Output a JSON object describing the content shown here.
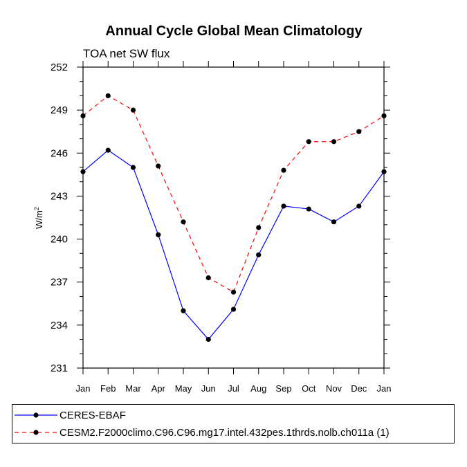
{
  "chart_data": {
    "type": "line",
    "title": "Annual Cycle Global Mean Climatology",
    "subtitle": "TOA net SW flux",
    "ylabel_base": "W/m",
    "ylabel_sup": "2",
    "xlabel": "",
    "categories": [
      "Jan",
      "Feb",
      "Mar",
      "Apr",
      "May",
      "Jun",
      "Jul",
      "Aug",
      "Sep",
      "Oct",
      "Nov",
      "Dec",
      "Jan"
    ],
    "ylim": [
      231,
      252
    ],
    "yticks": [
      231,
      234,
      237,
      240,
      243,
      246,
      249,
      252
    ],
    "ytick_labels": [
      "231",
      "234",
      "237",
      "240",
      "243",
      "246",
      "249",
      "252"
    ],
    "grid": false,
    "legend_position": "bottom",
    "series": [
      {
        "name": "CERES-EBAF",
        "color": "#0000ff",
        "dash": "solid",
        "values": [
          244.7,
          246.2,
          245.0,
          240.3,
          235.0,
          233.0,
          235.1,
          238.9,
          242.3,
          242.1,
          241.2,
          242.3,
          244.7
        ]
      },
      {
        "name": "CESM2.F2000climo.C96.C96.mg17.intel.432pes.1thrds.nolb.ch011a (1)",
        "color": "#ff0000",
        "dash": "dashed",
        "values": [
          248.6,
          250.0,
          249.0,
          245.1,
          241.2,
          237.3,
          236.3,
          240.8,
          244.8,
          246.8,
          246.8,
          247.5,
          248.6
        ]
      }
    ]
  }
}
